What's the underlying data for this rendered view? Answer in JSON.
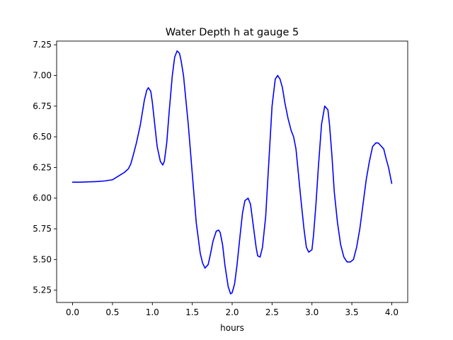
{
  "chart_data": {
    "type": "line",
    "title": "Water Depth h at gauge 5",
    "xlabel": "hours",
    "ylabel": "",
    "xlim": [
      -0.2,
      4.2
    ],
    "ylim": [
      5.15,
      7.28
    ],
    "xticks": [
      0.0,
      0.5,
      1.0,
      1.5,
      2.0,
      2.5,
      3.0,
      3.5,
      4.0
    ],
    "xtick_labels": [
      "0.0",
      "0.5",
      "1.0",
      "1.5",
      "2.0",
      "2.5",
      "3.0",
      "3.5",
      "4.0"
    ],
    "yticks": [
      5.25,
      5.5,
      5.75,
      6.0,
      6.25,
      6.5,
      6.75,
      7.0,
      7.25
    ],
    "ytick_labels": [
      "5.25",
      "5.50",
      "5.75",
      "6.00",
      "6.25",
      "6.50",
      "6.75",
      "7.00",
      "7.25"
    ],
    "grid": false,
    "series": [
      {
        "color": "#0000ff",
        "x": [
          0.0,
          0.1,
          0.2,
          0.3,
          0.4,
          0.45,
          0.5,
          0.55,
          0.6,
          0.65,
          0.7,
          0.73,
          0.76,
          0.8,
          0.85,
          0.9,
          0.93,
          0.95,
          0.98,
          1.0,
          1.03,
          1.06,
          1.1,
          1.13,
          1.15,
          1.18,
          1.21,
          1.25,
          1.28,
          1.31,
          1.34,
          1.36,
          1.39,
          1.42,
          1.45,
          1.5,
          1.55,
          1.6,
          1.63,
          1.66,
          1.7,
          1.73,
          1.76,
          1.8,
          1.83,
          1.85,
          1.88,
          1.91,
          1.95,
          1.98,
          2.0,
          2.03,
          2.06,
          2.1,
          2.13,
          2.16,
          2.2,
          2.23,
          2.26,
          2.3,
          2.32,
          2.35,
          2.38,
          2.42,
          2.46,
          2.5,
          2.54,
          2.57,
          2.6,
          2.63,
          2.66,
          2.7,
          2.74,
          2.77,
          2.8,
          2.83,
          2.86,
          2.9,
          2.93,
          2.96,
          3.0,
          3.02,
          3.05,
          3.08,
          3.12,
          3.16,
          3.2,
          3.22,
          3.25,
          3.28,
          3.32,
          3.36,
          3.4,
          3.44,
          3.48,
          3.52,
          3.56,
          3.6,
          3.64,
          3.68,
          3.72,
          3.76,
          3.8,
          3.83,
          3.86,
          3.9,
          3.93,
          3.96,
          4.0
        ],
        "y": [
          6.13,
          6.13,
          6.133,
          6.135,
          6.14,
          6.145,
          6.15,
          6.17,
          6.19,
          6.21,
          6.24,
          6.28,
          6.35,
          6.45,
          6.6,
          6.8,
          6.88,
          6.9,
          6.87,
          6.78,
          6.6,
          6.42,
          6.3,
          6.27,
          6.3,
          6.45,
          6.7,
          7.0,
          7.15,
          7.2,
          7.18,
          7.12,
          7.0,
          6.8,
          6.6,
          6.2,
          5.8,
          5.55,
          5.47,
          5.43,
          5.46,
          5.55,
          5.65,
          5.73,
          5.74,
          5.72,
          5.62,
          5.45,
          5.28,
          5.22,
          5.23,
          5.3,
          5.45,
          5.7,
          5.88,
          5.98,
          6.0,
          5.95,
          5.8,
          5.6,
          5.53,
          5.52,
          5.6,
          5.85,
          6.3,
          6.75,
          6.97,
          7.0,
          6.97,
          6.9,
          6.78,
          6.65,
          6.55,
          6.5,
          6.4,
          6.2,
          6.0,
          5.75,
          5.6,
          5.56,
          5.58,
          5.7,
          5.95,
          6.25,
          6.6,
          6.75,
          6.72,
          6.6,
          6.35,
          6.05,
          5.8,
          5.62,
          5.52,
          5.48,
          5.48,
          5.5,
          5.6,
          5.75,
          5.95,
          6.15,
          6.3,
          6.42,
          6.45,
          6.45,
          6.43,
          6.4,
          6.32,
          6.25,
          6.12
        ]
      }
    ]
  }
}
